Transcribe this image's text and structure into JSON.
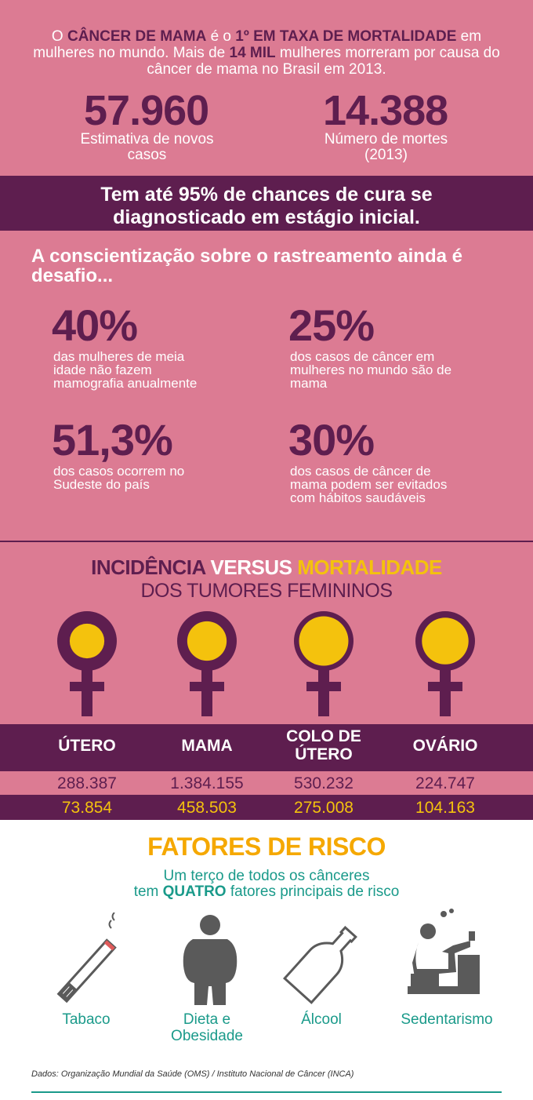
{
  "intro": {
    "p1": "O ",
    "b1": "CÂNCER DE MAMA",
    "p2": " é o ",
    "b2": "1º EM TAXA DE MORTALIDADE",
    "p3": " em mulheres no mundo. Mais de ",
    "b3": "14 MIL",
    "p4": " mulheres morreram por causa do câncer de mama no Brasil em 2013.",
    "stat1_value": "57.960",
    "stat1_caption": "Estimativa de novos casos",
    "stat2_value": "14.388",
    "stat2_caption": "Número de mortes (2013)"
  },
  "cure_banner": "Tem até 95% de chances de cura se diagnosticado em estágio inicial.",
  "awareness": {
    "title": "A conscientização sobre o rastreamento ainda é desafio...",
    "stats": [
      {
        "value": "40%",
        "text": "das mulheres de meia idade não fazem mamografia anualmente"
      },
      {
        "value": "25%",
        "text": "dos casos de câncer em mulheres no mundo são de mama"
      },
      {
        "value": "51,3%",
        "text": "dos casos ocorrem no Sudeste do país"
      },
      {
        "value": "30%",
        "text": "dos casos de câncer de mama podem ser evitados com hábitos saudáveis"
      }
    ]
  },
  "incidence": {
    "title_part1": "INCIDÊNCIA ",
    "title_part2": "VERSUS ",
    "title_part3": "MORTALIDADE",
    "subtitle": "DOS TUMORES FEMININOS",
    "columns": [
      {
        "label": "ÚTERO",
        "incidence": "288.387",
        "mortality": "73.854",
        "ratio": 0.256
      },
      {
        "label": "MAMA",
        "incidence": "1.384.155",
        "mortality": "458.503",
        "ratio": 0.331
      },
      {
        "label": "COLO DE ÚTERO",
        "incidence": "530.232",
        "mortality": "275.008",
        "ratio": 0.519
      },
      {
        "label": "OVÁRIO",
        "incidence": "224.747",
        "mortality": "104.163",
        "ratio": 0.463
      }
    ]
  },
  "risk": {
    "title": "FATORES DE RISCO",
    "sub1": "Um terço de todos os cânceres",
    "sub2a": "tem ",
    "sub2b": "QUATRO",
    "sub2c": " fatores principais de risco",
    "factors": [
      {
        "label": "Tabaco",
        "icon": "cigarette-icon"
      },
      {
        "label": "Dieta e Obesidade",
        "icon": "obese-person-icon"
      },
      {
        "label": "Álcool",
        "icon": "bottle-icon"
      },
      {
        "label": "Sedentarismo",
        "icon": "sedentary-person-icon"
      }
    ],
    "source": "Dados: Organização Mundial da Saúde (OMS) / Instituto Nacional de Câncer (INCA)"
  },
  "colors": {
    "pink": "#dc7b93",
    "dark_purple": "#5e1e4f",
    "yellow": "#f4c20d",
    "orange": "#f5a800",
    "teal": "#1a9a8a"
  }
}
